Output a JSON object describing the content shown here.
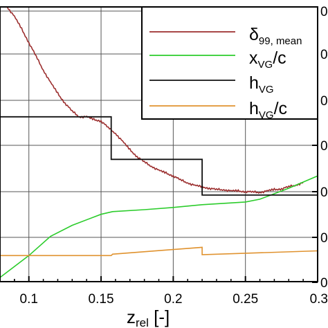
{
  "chart_data": {
    "type": "line",
    "xlabel": {
      "main": "z",
      "sub": "rel",
      "suffix": " [-]"
    },
    "xlim": [
      0.08,
      0.3
    ],
    "xticks": [
      0.1,
      0.15,
      0.2,
      0.25,
      0.3
    ],
    "xtick_labels": [
      "0.1",
      "0.15",
      "0.2",
      "0.25",
      "0.3"
    ],
    "right_tick_labels": [
      "0",
      "0",
      "0",
      "0",
      "0",
      "0",
      "0"
    ],
    "grid": true,
    "legend_position": "top-right",
    "series": [
      {
        "key": "delta",
        "label": {
          "main": "δ",
          "sub": "99, mean"
        },
        "color": "#9b2d2d",
        "x": [
          0.085,
          0.09,
          0.095,
          0.1,
          0.105,
          0.11,
          0.115,
          0.12,
          0.125,
          0.13,
          0.135,
          0.14,
          0.145,
          0.15,
          0.155,
          0.16,
          0.165,
          0.17,
          0.175,
          0.18,
          0.185,
          0.19,
          0.195,
          0.2,
          0.205,
          0.21,
          0.215,
          0.22,
          0.225,
          0.23,
          0.235,
          0.24,
          0.245,
          0.25,
          0.255,
          0.26,
          0.265,
          0.27,
          0.275,
          0.28,
          0.285,
          0.29
        ],
        "y": [
          1.0,
          0.965,
          0.92,
          0.87,
          0.82,
          0.77,
          0.725,
          0.685,
          0.65,
          0.62,
          0.6,
          0.6,
          0.59,
          0.585,
          0.56,
          0.54,
          0.51,
          0.48,
          0.455,
          0.435,
          0.42,
          0.405,
          0.395,
          0.385,
          0.37,
          0.36,
          0.35,
          0.345,
          0.34,
          0.335,
          0.335,
          0.33,
          0.33,
          0.328,
          0.326,
          0.325,
          0.33,
          0.335,
          0.338,
          0.345,
          0.352,
          0.36
        ]
      },
      {
        "key": "xvg",
        "label": {
          "main": "x",
          "sub": "VG",
          "suffix": "/c"
        },
        "color": "#2bcc2b",
        "x": [
          0.08,
          0.1,
          0.115,
          0.13,
          0.15,
          0.158,
          0.18,
          0.2,
          0.22,
          0.25,
          0.26,
          0.28,
          0.3
        ],
        "y": [
          0.015,
          0.095,
          0.165,
          0.205,
          0.245,
          0.255,
          0.262,
          0.27,
          0.28,
          0.29,
          0.3,
          0.34,
          0.385
        ]
      },
      {
        "key": "hvg",
        "label": {
          "main": "h",
          "sub": "VG"
        },
        "color": "#111111",
        "step": true,
        "x": [
          0.08,
          0.157,
          0.157,
          0.22,
          0.22,
          0.3
        ],
        "y": [
          0.6,
          0.6,
          0.445,
          0.445,
          0.315,
          0.315
        ]
      },
      {
        "key": "hvgc",
        "label": {
          "main": "h",
          "sub": "VG",
          "suffix": "/c"
        },
        "color": "#e0922e",
        "x": [
          0.08,
          0.1,
          0.157,
          0.158,
          0.22,
          0.22,
          0.3
        ],
        "y": [
          0.095,
          0.095,
          0.095,
          0.1,
          0.125,
          0.098,
          0.112
        ]
      }
    ]
  }
}
